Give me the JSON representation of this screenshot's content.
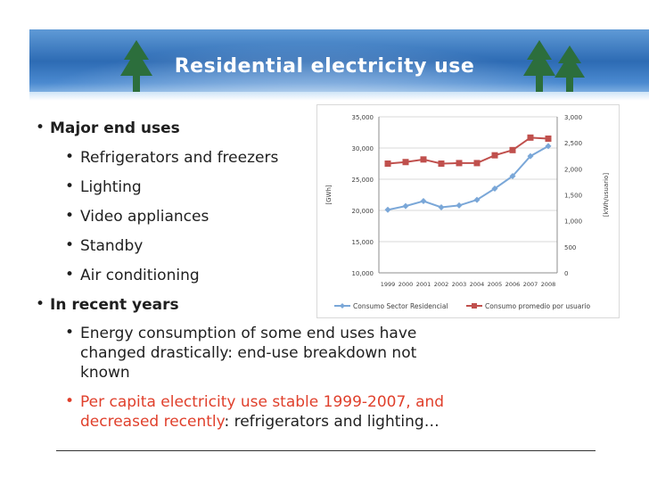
{
  "slide": {
    "title": "Residential electricity use",
    "bullets": [
      {
        "text": "Major end uses",
        "level": 1
      },
      {
        "text": "Refrigerators and freezers",
        "level": 2
      },
      {
        "text": "Lighting",
        "level": 2
      },
      {
        "text": "Video appliances",
        "level": 2
      },
      {
        "text": "Standby",
        "level": 2
      },
      {
        "text": "Air conditioning",
        "level": 2
      },
      {
        "text": "In recent years",
        "level": 1
      },
      {
        "text_lines": [
          "Energy consumption of some end uses have",
          "changed drastically: end-use breakdown not",
          "known"
        ],
        "level": 2
      },
      {
        "red_line1": "Per capita electricity use stable 1999-2007, and",
        "red_line2": "decreased recently",
        "black_tail": ": refrigerators and lighting…",
        "level": 2
      }
    ]
  },
  "colors": {
    "accent_red": "#e0402c",
    "series1": "#7aa7d8",
    "series2": "#c0504d",
    "banner": "#2d6bb4"
  },
  "chart_data": {
    "type": "line",
    "categories": [
      "1999",
      "2000",
      "2001",
      "2002",
      "2003",
      "2004",
      "2005",
      "2006",
      "2007",
      "2008"
    ],
    "series": [
      {
        "name": "Consumo Sector Residencial",
        "axis": "left",
        "values": [
          20100,
          20700,
          21500,
          20500,
          20800,
          21700,
          23500,
          25500,
          28700,
          30300
        ]
      },
      {
        "name": "Consumo promedio por usuario",
        "axis": "right",
        "values": [
          2100,
          2130,
          2180,
          2100,
          2110,
          2110,
          2260,
          2360,
          2600,
          2580
        ]
      }
    ],
    "ylabel": "[GWh]",
    "y2label": "[kWh/usuario]",
    "ylim": [
      10000,
      35000
    ],
    "y2lim": [
      0,
      3000
    ],
    "yticks": [
      "10,000",
      "15,000",
      "20,000",
      "25,000",
      "30,000",
      "35,000"
    ],
    "y2ticks": [
      "0",
      "500",
      "1,000",
      "1,500",
      "2,000",
      "2,500",
      "3,000"
    ],
    "legend": "bottom"
  }
}
